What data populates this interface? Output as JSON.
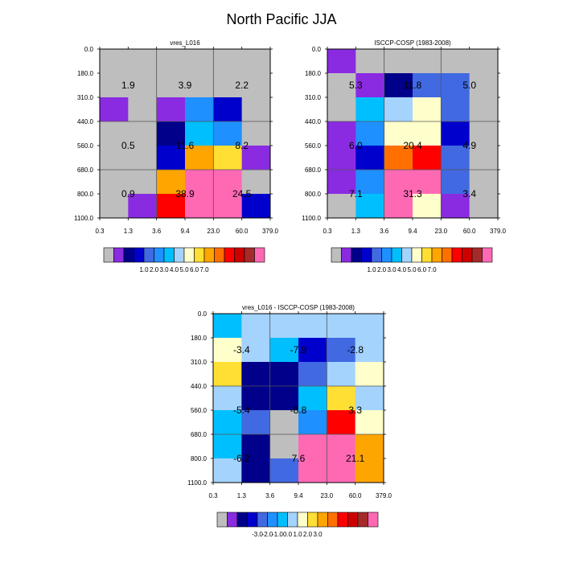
{
  "title": "North Pacific JJA",
  "palette": {
    "0": "#BEBEBE",
    "1": "#8A2BE2",
    "2": "#00008B",
    "3": "#0000CD",
    "4": "#4169E1",
    "5": "#1E90FF",
    "6": "#00BFFF",
    "7": "#A4D3FE",
    "8": "#FFFFCC",
    "9": "#FFDF33",
    "10": "#FFA500",
    "11": "#FF7000",
    "12": "#FF0000",
    "13": "#CD0000",
    "14": "#A52A2A",
    "15": "#FF69B4"
  },
  "chart_data": [
    {
      "type": "heatmap",
      "id": "vres",
      "title": "vres_L016",
      "x_ticks": [
        "0.3",
        "1.3",
        "3.6",
        "9.4",
        "23.0",
        "60.0",
        "379.0"
      ],
      "y_ticks": [
        "0.0",
        "180.0",
        "310.0",
        "440.0",
        "560.0",
        "680.0",
        "800.0",
        "1100.0"
      ],
      "cells": [
        [
          0,
          0,
          0,
          0,
          0,
          0
        ],
        [
          0,
          0,
          0,
          0,
          0,
          0
        ],
        [
          1,
          0,
          1,
          5,
          3,
          0
        ],
        [
          0,
          0,
          2,
          6,
          5,
          0
        ],
        [
          0,
          0,
          3,
          10,
          9,
          1
        ],
        [
          0,
          0,
          10,
          15,
          15,
          0
        ],
        [
          0,
          1,
          12,
          15,
          15,
          3
        ]
      ],
      "region_labels": [
        {
          "text": "1.9",
          "row": 1.5,
          "col": 1.0
        },
        {
          "text": "3.9",
          "row": 1.5,
          "col": 3.0
        },
        {
          "text": "2.2",
          "row": 1.5,
          "col": 5.0
        },
        {
          "text": "0.5",
          "row": 4.0,
          "col": 1.0
        },
        {
          "text": "11.6",
          "row": 4.0,
          "col": 3.0
        },
        {
          "text": "8.2",
          "row": 4.0,
          "col": 5.0
        },
        {
          "text": "0.9",
          "row": 6.0,
          "col": 1.0
        },
        {
          "text": "38.9",
          "row": 6.0,
          "col": 3.0
        },
        {
          "text": "24.5",
          "row": 6.0,
          "col": 5.0
        }
      ],
      "colorbar_labels": [
        "1.0",
        "2.0",
        "3.0",
        "4.0",
        "5.0",
        "6.0",
        "7.0"
      ]
    },
    {
      "type": "heatmap",
      "id": "isccp",
      "title": "ISCCP-COSP (1983-2008)",
      "x_ticks": [
        "0.3",
        "1.3",
        "3.6",
        "9.4",
        "23.0",
        "60.0",
        "379.0"
      ],
      "y_ticks": [
        "0.0",
        "180.0",
        "310.0",
        "440.0",
        "560.0",
        "680.0",
        "800.0",
        "1100.0"
      ],
      "cells": [
        [
          1,
          0,
          0,
          0,
          0,
          0
        ],
        [
          0,
          1,
          2,
          4,
          4,
          0
        ],
        [
          0,
          6,
          7,
          8,
          4,
          0
        ],
        [
          1,
          5,
          8,
          8,
          3,
          0
        ],
        [
          1,
          3,
          11,
          12,
          4,
          0
        ],
        [
          1,
          5,
          15,
          15,
          4,
          0
        ],
        [
          0,
          6,
          15,
          8,
          1,
          0
        ]
      ],
      "region_labels": [
        {
          "text": "5.3",
          "row": 1.5,
          "col": 1.0
        },
        {
          "text": "11.8",
          "row": 1.5,
          "col": 3.0
        },
        {
          "text": "5.0",
          "row": 1.5,
          "col": 5.0
        },
        {
          "text": "6.0",
          "row": 4.0,
          "col": 1.0
        },
        {
          "text": "20.4",
          "row": 4.0,
          "col": 3.0
        },
        {
          "text": "4.9",
          "row": 4.0,
          "col": 5.0
        },
        {
          "text": "7.1",
          "row": 6.0,
          "col": 1.0
        },
        {
          "text": "31.3",
          "row": 6.0,
          "col": 3.0
        },
        {
          "text": "3.4",
          "row": 6.0,
          "col": 5.0
        }
      ],
      "colorbar_labels": [
        "1.0",
        "2.0",
        "3.0",
        "4.0",
        "5.0",
        "6.0",
        "7.0"
      ]
    },
    {
      "type": "heatmap",
      "id": "diff",
      "title": "vres_L016 - ISCCP-COSP (1983-2008)",
      "x_ticks": [
        "0.3",
        "1.3",
        "3.6",
        "9.4",
        "23.0",
        "60.0",
        "379.0"
      ],
      "y_ticks": [
        "0.0",
        "180.0",
        "310.0",
        "440.0",
        "560.0",
        "680.0",
        "800.0",
        "1100.0"
      ],
      "cells": [
        [
          6,
          7,
          7,
          7,
          7,
          7
        ],
        [
          8,
          7,
          6,
          3,
          4,
          7
        ],
        [
          9,
          2,
          2,
          4,
          7,
          8
        ],
        [
          7,
          2,
          2,
          6,
          9,
          7
        ],
        [
          6,
          4,
          0,
          5,
          12,
          8
        ],
        [
          6,
          2,
          0,
          15,
          15,
          10
        ],
        [
          7,
          2,
          4,
          15,
          15,
          10
        ]
      ],
      "region_labels": [
        {
          "text": "-3.4",
          "row": 1.5,
          "col": 1.0
        },
        {
          "text": "-7.9",
          "row": 1.5,
          "col": 3.0
        },
        {
          "text": "-2.8",
          "row": 1.5,
          "col": 5.0
        },
        {
          "text": "-5.4",
          "row": 4.0,
          "col": 1.0
        },
        {
          "text": "-8.8",
          "row": 4.0,
          "col": 3.0
        },
        {
          "text": "3.3",
          "row": 4.0,
          "col": 5.0
        },
        {
          "text": "-6.2",
          "row": 6.0,
          "col": 1.0
        },
        {
          "text": "7.6",
          "row": 6.0,
          "col": 3.0
        },
        {
          "text": "21.1",
          "row": 6.0,
          "col": 5.0
        }
      ],
      "colorbar_labels": [
        "-3.0",
        "-2.0",
        "-1.0",
        "0.0",
        "1.0",
        "2.0",
        "3.0"
      ]
    }
  ]
}
